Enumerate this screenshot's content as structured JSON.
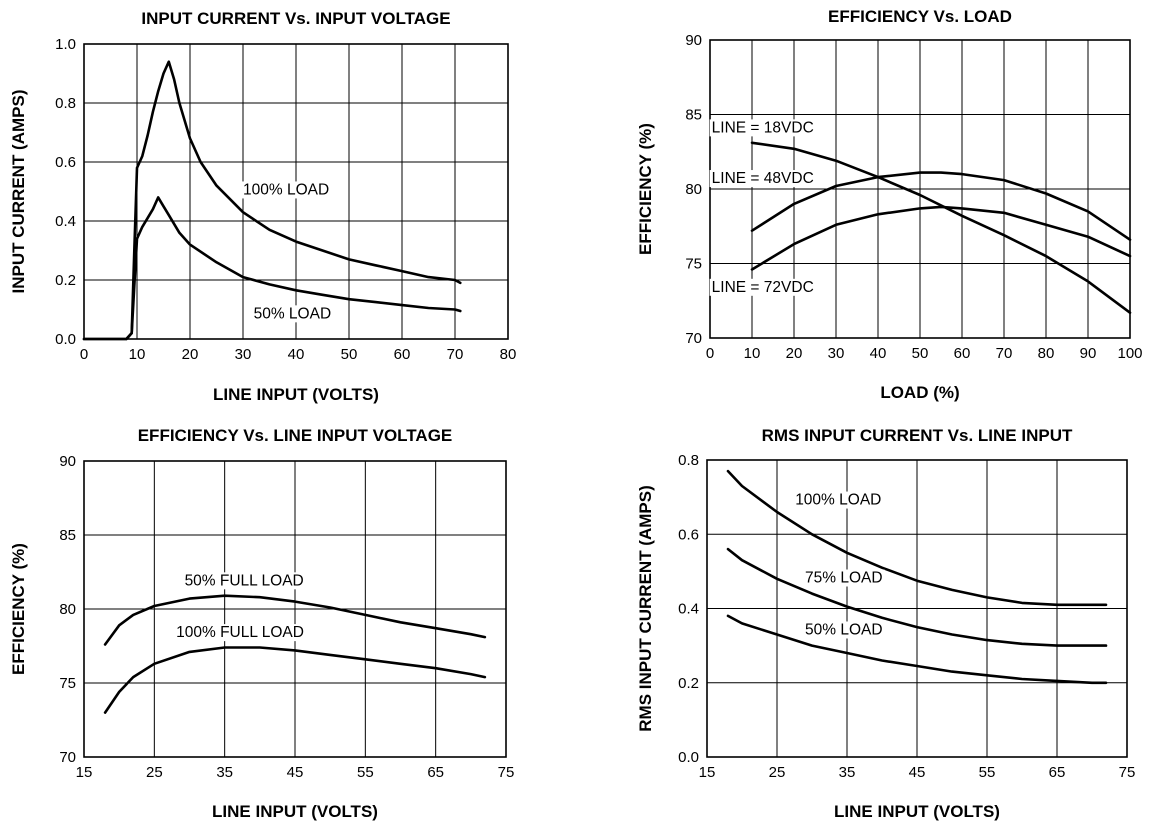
{
  "chart_data": [
    {
      "type": "line",
      "title": "INPUT CURRENT Vs. INPUT VOLTAGE",
      "xlabel": "LINE INPUT (VOLTS)",
      "ylabel": "INPUT CURRENT (AMPS)",
      "xlim": [
        0,
        80
      ],
      "ylim": [
        0,
        1.0
      ],
      "xticks": [
        "0",
        "10",
        "20",
        "30",
        "40",
        "50",
        "60",
        "70",
        "80"
      ],
      "yticks": [
        "0.0",
        "0.2",
        "0.4",
        "0.6",
        "0.8",
        "1.0"
      ],
      "grid": true,
      "series": [
        {
          "name": "100% LOAD",
          "x": [
            0,
            8,
            9,
            9.5,
            10,
            11,
            12,
            13,
            14,
            15,
            16,
            17,
            18,
            20,
            22,
            25,
            30,
            35,
            40,
            45,
            50,
            55,
            60,
            65,
            70,
            71
          ],
          "y": [
            0,
            0,
            0.02,
            0.3,
            0.58,
            0.62,
            0.69,
            0.77,
            0.84,
            0.9,
            0.94,
            0.88,
            0.8,
            0.68,
            0.6,
            0.52,
            0.43,
            0.37,
            0.33,
            0.3,
            0.27,
            0.25,
            0.23,
            0.21,
            0.2,
            0.19
          ]
        },
        {
          "name": "50% LOAD",
          "x": [
            0,
            8,
            9,
            9.5,
            10,
            11,
            12,
            13,
            14,
            15,
            16,
            18,
            20,
            25,
            30,
            35,
            40,
            45,
            50,
            55,
            60,
            65,
            70,
            71
          ],
          "y": [
            0,
            0,
            0.02,
            0.18,
            0.34,
            0.38,
            0.41,
            0.44,
            0.48,
            0.45,
            0.42,
            0.36,
            0.32,
            0.26,
            0.21,
            0.185,
            0.165,
            0.15,
            0.135,
            0.125,
            0.115,
            0.105,
            0.1,
            0.095
          ]
        }
      ],
      "annotations": [
        {
          "text": "100% LOAD",
          "x": 30,
          "y": 0.49
        },
        {
          "text": "50% LOAD",
          "x": 32,
          "y": 0.07
        }
      ]
    },
    {
      "type": "line",
      "title": "EFFICIENCY Vs. LOAD",
      "xlabel": "LOAD (%)",
      "ylabel": "EFFICIENCY (%)",
      "xlim": [
        0,
        100
      ],
      "ylim": [
        70,
        90
      ],
      "xticks": [
        "0",
        "10",
        "20",
        "30",
        "40",
        "50",
        "60",
        "70",
        "80",
        "90",
        "100"
      ],
      "yticks": [
        "70",
        "75",
        "80",
        "85",
        "90"
      ],
      "grid": true,
      "series": [
        {
          "name": "LINE = 18VDC",
          "x": [
            10,
            20,
            30,
            40,
            50,
            60,
            70,
            80,
            90,
            100
          ],
          "y": [
            83.1,
            82.7,
            81.9,
            80.8,
            79.6,
            78.2,
            76.9,
            75.5,
            73.8,
            71.7
          ]
        },
        {
          "name": "LINE = 48VDC",
          "x": [
            10,
            20,
            30,
            40,
            50,
            55,
            60,
            70,
            80,
            90,
            100
          ],
          "y": [
            77.2,
            79.0,
            80.2,
            80.8,
            81.1,
            81.1,
            81.0,
            80.6,
            79.7,
            78.5,
            76.6
          ]
        },
        {
          "name": "LINE = 72VDC",
          "x": [
            10,
            20,
            30,
            40,
            50,
            55,
            60,
            70,
            80,
            90,
            100
          ],
          "y": [
            74.6,
            76.3,
            77.6,
            78.3,
            78.7,
            78.8,
            78.7,
            78.4,
            77.6,
            76.8,
            75.5
          ]
        }
      ],
      "annotations": [
        {
          "text": "LINE = 18VDC",
          "x": 0.4,
          "y": 83.8
        },
        {
          "text": "LINE = 48VDC",
          "x": 0.4,
          "y": 80.4
        },
        {
          "text": "LINE = 72VDC",
          "x": 0.4,
          "y": 73.1
        }
      ]
    },
    {
      "type": "line",
      "title": "EFFICIENCY Vs. LINE INPUT VOLTAGE",
      "xlabel": "LINE INPUT (VOLTS)",
      "ylabel": "EFFICIENCY (%)",
      "xlim": [
        15,
        75
      ],
      "ylim": [
        70,
        90
      ],
      "xticks": [
        "15",
        "25",
        "35",
        "45",
        "55",
        "65",
        "75"
      ],
      "yticks": [
        "70",
        "75",
        "80",
        "85",
        "90"
      ],
      "grid": true,
      "series": [
        {
          "name": "50% FULL LOAD",
          "x": [
            18,
            20,
            22,
            25,
            30,
            35,
            40,
            45,
            50,
            55,
            60,
            65,
            70,
            72
          ],
          "y": [
            77.6,
            78.9,
            79.6,
            80.2,
            80.7,
            80.9,
            80.8,
            80.5,
            80.1,
            79.6,
            79.1,
            78.7,
            78.3,
            78.1
          ]
        },
        {
          "name": "100% FULL LOAD",
          "x": [
            18,
            20,
            22,
            25,
            30,
            35,
            40,
            45,
            50,
            55,
            60,
            65,
            70,
            72
          ],
          "y": [
            73.0,
            74.4,
            75.4,
            76.3,
            77.1,
            77.4,
            77.4,
            77.2,
            76.9,
            76.6,
            76.3,
            76.0,
            75.6,
            75.4
          ]
        }
      ],
      "annotations": [
        {
          "text": "50% FULL LOAD",
          "x": 29.3,
          "y": 81.6
        },
        {
          "text": "100% FULL LOAD",
          "x": 28.1,
          "y": 78.1
        }
      ]
    },
    {
      "type": "line",
      "title": "RMS INPUT CURRENT Vs. LINE INPUT",
      "xlabel": "LINE INPUT (VOLTS)",
      "ylabel": "RMS INPUT CURRENT (AMPS)",
      "xlim": [
        15,
        75
      ],
      "ylim": [
        0,
        0.8
      ],
      "xticks": [
        "15",
        "25",
        "35",
        "45",
        "55",
        "65",
        "75"
      ],
      "yticks": [
        "0.0",
        "0.2",
        "0.4",
        "0.6",
        "0.8"
      ],
      "grid": true,
      "series": [
        {
          "name": "100% LOAD",
          "x": [
            18,
            20,
            25,
            30,
            35,
            40,
            45,
            50,
            55,
            60,
            65,
            70,
            72
          ],
          "y": [
            0.77,
            0.73,
            0.66,
            0.6,
            0.55,
            0.51,
            0.475,
            0.45,
            0.43,
            0.415,
            0.41,
            0.41,
            0.41
          ]
        },
        {
          "name": "75% LOAD",
          "x": [
            18,
            20,
            25,
            30,
            35,
            40,
            45,
            50,
            55,
            60,
            65,
            70,
            72
          ],
          "y": [
            0.56,
            0.53,
            0.48,
            0.44,
            0.405,
            0.375,
            0.35,
            0.33,
            0.315,
            0.305,
            0.3,
            0.3,
            0.3
          ]
        },
        {
          "name": "50% LOAD",
          "x": [
            18,
            20,
            25,
            30,
            35,
            40,
            45,
            50,
            55,
            60,
            65,
            70,
            72
          ],
          "y": [
            0.38,
            0.36,
            0.33,
            0.3,
            0.28,
            0.26,
            0.245,
            0.23,
            0.22,
            0.21,
            0.205,
            0.2,
            0.2
          ]
        }
      ],
      "annotations": [
        {
          "text": "100% LOAD",
          "x": 27.6,
          "y": 0.68
        },
        {
          "text": "75% LOAD",
          "x": 29.0,
          "y": 0.47
        },
        {
          "text": "50% LOAD",
          "x": 29.0,
          "y": 0.33
        }
      ]
    }
  ]
}
